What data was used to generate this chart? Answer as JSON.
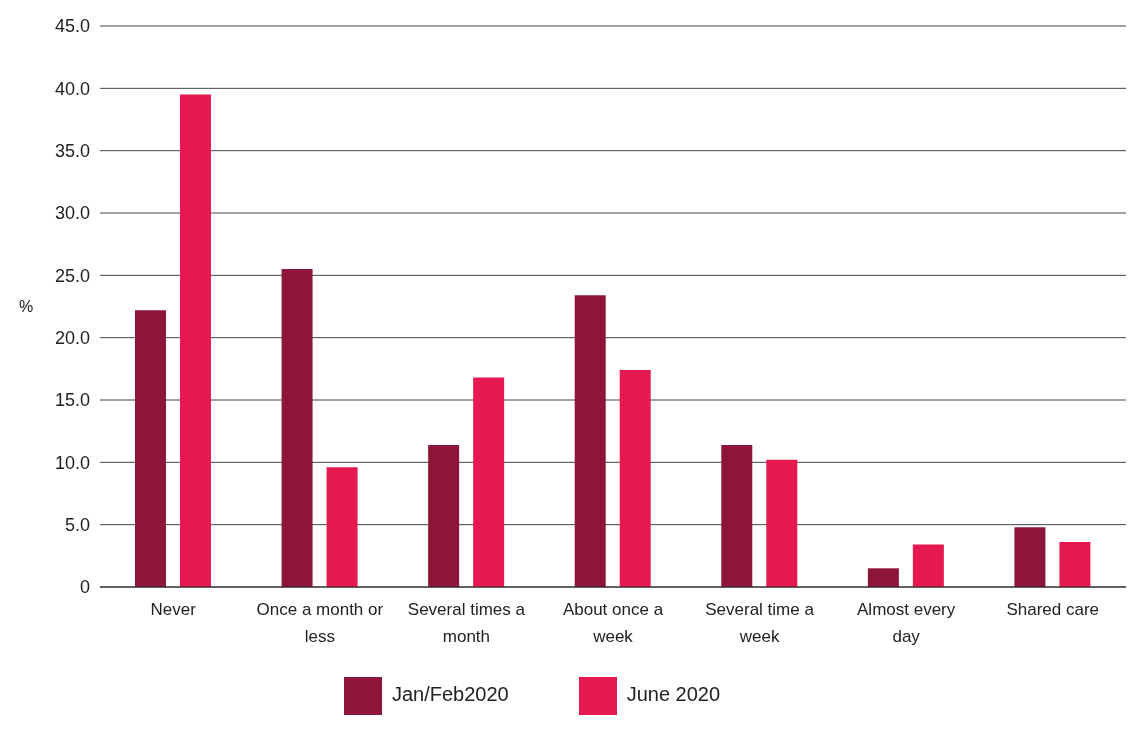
{
  "chart_data": {
    "type": "bar",
    "ylabel": "%",
    "categories": [
      "Never",
      "Once a month or less",
      "Several times a month",
      "About once a week",
      "Several time a week",
      "Almost every day",
      "Shared care"
    ],
    "series": [
      {
        "name": "Jan/Feb2020",
        "color": "#8c1538",
        "values": [
          22.2,
          25.5,
          11.4,
          23.4,
          11.4,
          1.5,
          4.8
        ]
      },
      {
        "name": "June 2020",
        "color": "#e5194f",
        "values": [
          39.5,
          9.6,
          16.8,
          17.4,
          10.2,
          3.4,
          3.6
        ]
      }
    ],
    "ylim": [
      0,
      45
    ],
    "yticks": [
      {
        "value": 0,
        "label": "0"
      },
      {
        "value": 5,
        "label": "5.0"
      },
      {
        "value": 10,
        "label": "10.0"
      },
      {
        "value": 15,
        "label": "15.0"
      },
      {
        "value": 20,
        "label": "20.0"
      },
      {
        "value": 25,
        "label": "25.0"
      },
      {
        "value": 30,
        "label": "30.0"
      },
      {
        "value": 35,
        "label": "35.0"
      },
      {
        "value": 40,
        "label": "40.0"
      },
      {
        "value": 45,
        "label": "45.0"
      }
    ],
    "grid": "y",
    "legend": "bottom"
  }
}
